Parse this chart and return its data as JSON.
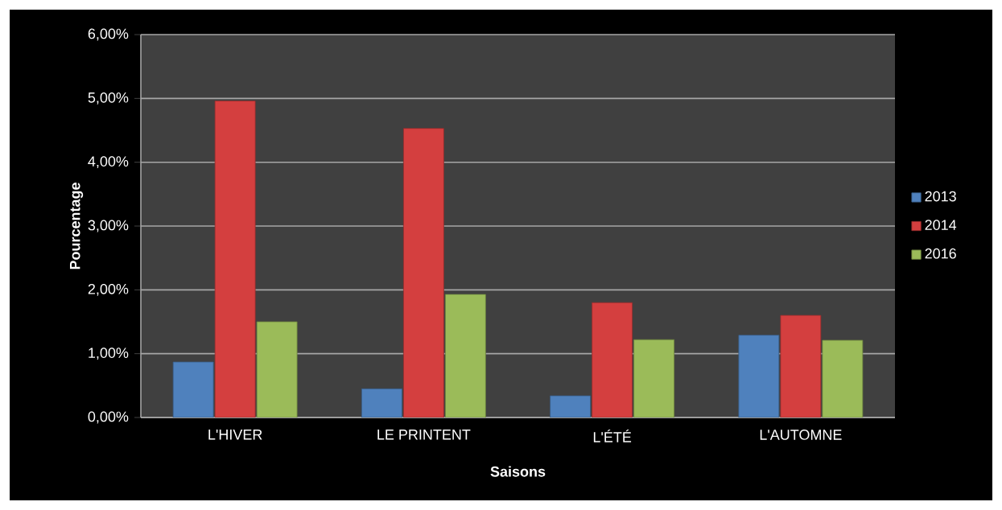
{
  "chart_data": {
    "type": "bar",
    "xlabel": "Saisons",
    "ylabel": "Pourcentage",
    "categories": [
      "L'HIVER",
      "LE PRINTENT",
      "L'ÉTÉ",
      "L'AUTOMNE"
    ],
    "series": [
      {
        "name": "2013",
        "color": "#4f81bd",
        "values": [
          0.87,
          0.45,
          0.34,
          1.29
        ]
      },
      {
        "name": "2014",
        "color": "#d43f3f",
        "values": [
          4.96,
          4.53,
          1.8,
          1.6
        ]
      },
      {
        "name": "2016",
        "color": "#9bbb59",
        "values": [
          1.5,
          1.93,
          1.22,
          1.21
        ]
      }
    ],
    "ylim": [
      0,
      6
    ],
    "yticks": [
      {
        "value": 0,
        "label": "0,00%"
      },
      {
        "value": 1,
        "label": "1,00%"
      },
      {
        "value": 2,
        "label": "2,00%"
      },
      {
        "value": 3,
        "label": "3,00%"
      },
      {
        "value": 4,
        "label": "4,00%"
      },
      {
        "value": 5,
        "label": "5,00%"
      },
      {
        "value": 6,
        "label": "6,00%"
      }
    ],
    "grid": "y",
    "legend": "right"
  }
}
